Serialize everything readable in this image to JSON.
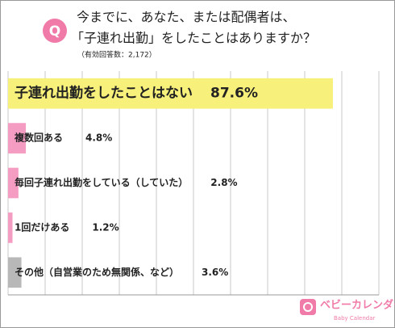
{
  "chart_data": {
    "type": "bar",
    "orientation": "horizontal",
    "title_lines": [
      "今までに、あなた、または配偶者は、",
      "「子連れ出勤」をしたことはありますか？"
    ],
    "subtitle": "（有効回答数：2,172）",
    "badge": "Q",
    "categories": [
      "子連れ出勤をしたことはない",
      "複数回ある",
      "毎回子連れ出勤をしている（していた）",
      "1回だけある",
      "その他（自営業のため無関係、など）"
    ],
    "values": [
      87.6,
      4.8,
      2.8,
      1.2,
      3.6
    ],
    "value_labels": [
      "87.6%",
      "4.8%",
      "2.8%",
      "1.2%",
      "3.6%"
    ],
    "colors": [
      "#f7f07a",
      "#f59cc3",
      "#f59cc3",
      "#f59cc3",
      "#b8b8b8"
    ],
    "xlim": [
      0,
      100
    ],
    "xticks": [
      0,
      10,
      20,
      30,
      40,
      50,
      60,
      70,
      80,
      90,
      100
    ],
    "grid": true
  },
  "brand": {
    "name": "ベビーカレンダー",
    "tagline": "Baby Calendar"
  }
}
